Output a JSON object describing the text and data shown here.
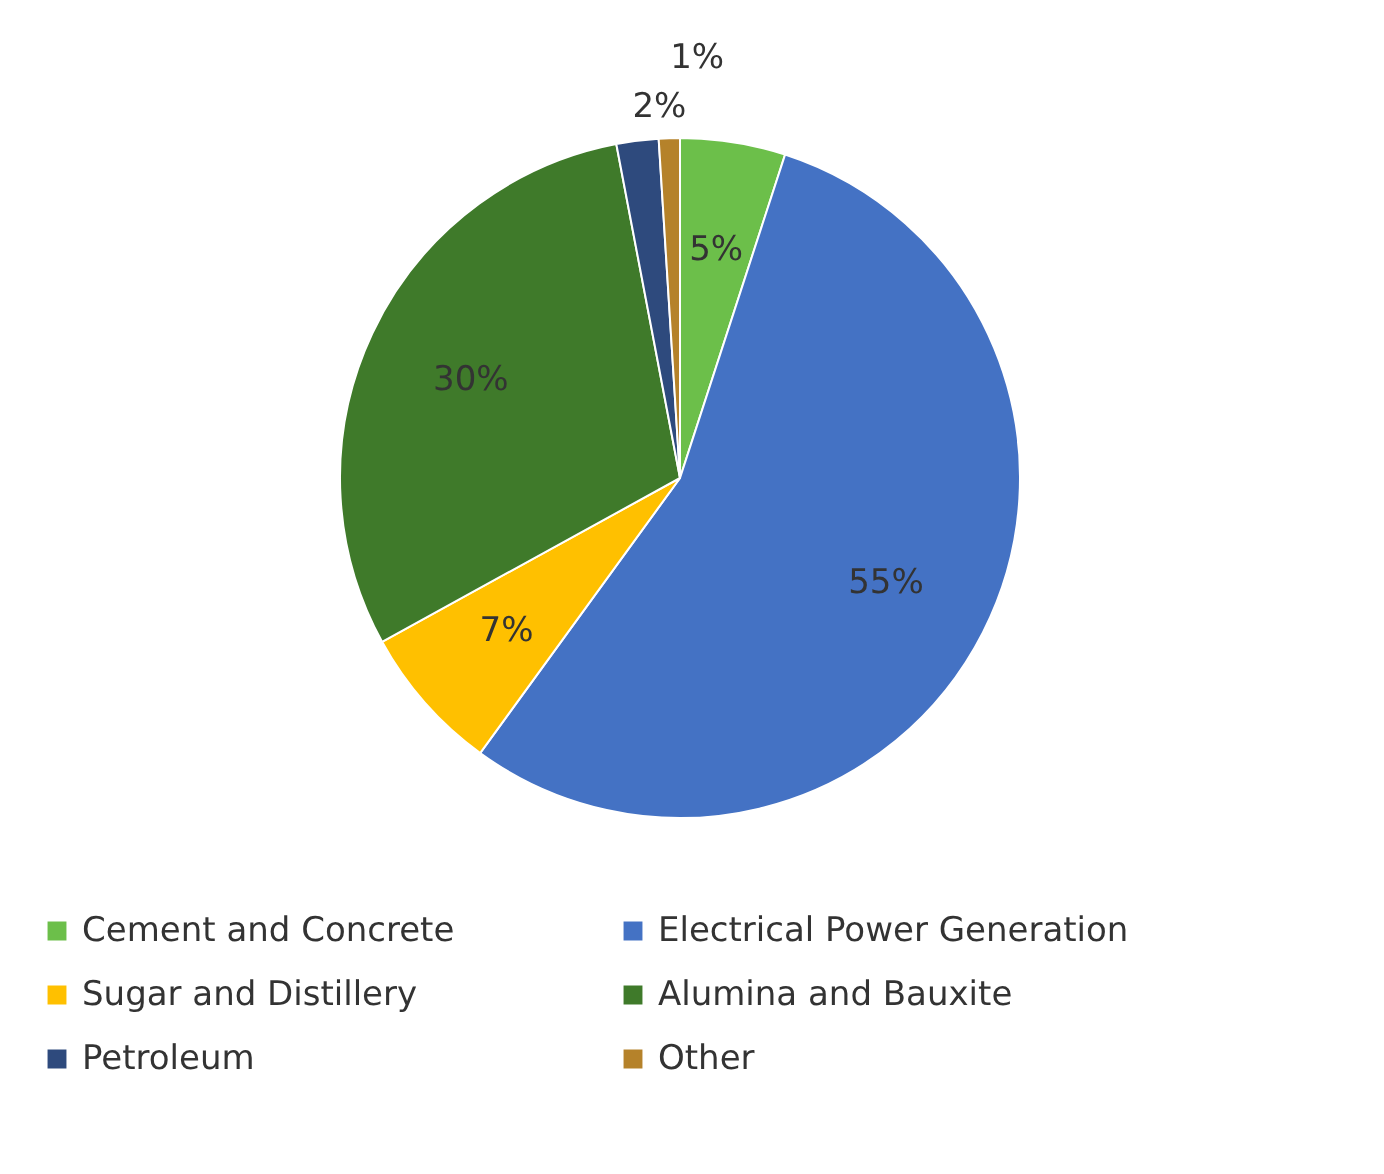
{
  "chart_data": {
    "type": "pie",
    "categories": [
      "Cement and Concrete",
      "Electrical Power Generation",
      "Sugar and Distillery",
      "Alumina and Bauxite",
      "Petroleum",
      "Other"
    ],
    "values": [
      5,
      55,
      7,
      30,
      2,
      1
    ],
    "colors": [
      "#6cbf4a",
      "#4472c4",
      "#ffc000",
      "#3f7a2a",
      "#2e4a7d",
      "#b5822a"
    ],
    "value_labels": [
      "5%",
      "55%",
      "7%",
      "30%",
      "2%",
      "1%"
    ],
    "legend": "bottom"
  }
}
